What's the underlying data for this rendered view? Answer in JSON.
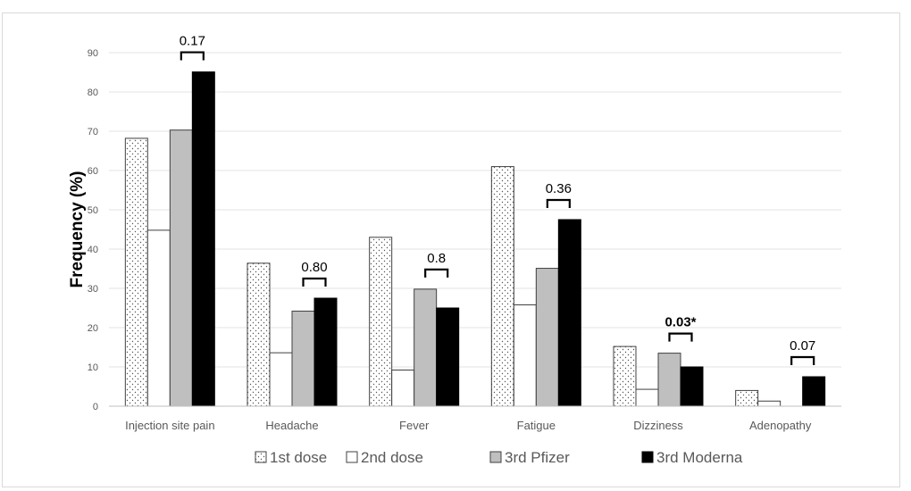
{
  "chart_data": {
    "type": "bar",
    "title": "",
    "xlabel": "",
    "ylabel": "Frequency (%)",
    "ylim": [
      0,
      90
    ],
    "yticks": [
      0,
      10,
      20,
      30,
      40,
      50,
      60,
      70,
      80,
      90
    ],
    "grid": true,
    "legend_position": "bottom",
    "categories": [
      "Injection site pain",
      "Headache",
      "Fever",
      "Fatigue",
      "Dizziness",
      "Adenopathy"
    ],
    "series": [
      {
        "name": "1st dose",
        "values": [
          68.2,
          36.4,
          43,
          61,
          15.2,
          4
        ],
        "fill": "dotted",
        "color": "#ffffff"
      },
      {
        "name": "2nd dose",
        "values": [
          44.8,
          13.6,
          9.2,
          25.8,
          4.3,
          1.3
        ],
        "fill": "solid",
        "color": "#ffffff"
      },
      {
        "name": "3rd Pfizer",
        "values": [
          70.3,
          24.2,
          29.8,
          35.1,
          13.5,
          0
        ],
        "fill": "solid",
        "color": "#bfbfbf"
      },
      {
        "name": "3rd Moderna",
        "values": [
          85.1,
          27.5,
          25,
          47.5,
          10,
          7.5
        ],
        "fill": "solid",
        "color": "#000000"
      }
    ],
    "annotations": [
      {
        "text": "0.17",
        "bold": false
      },
      {
        "text": "0.80",
        "bold": false
      },
      {
        "text": "0.8",
        "bold": false
      },
      {
        "text": "0.36",
        "bold": false
      },
      {
        "text": "0.03*",
        "bold": true
      },
      {
        "text": "0.07",
        "bold": false
      }
    ]
  }
}
